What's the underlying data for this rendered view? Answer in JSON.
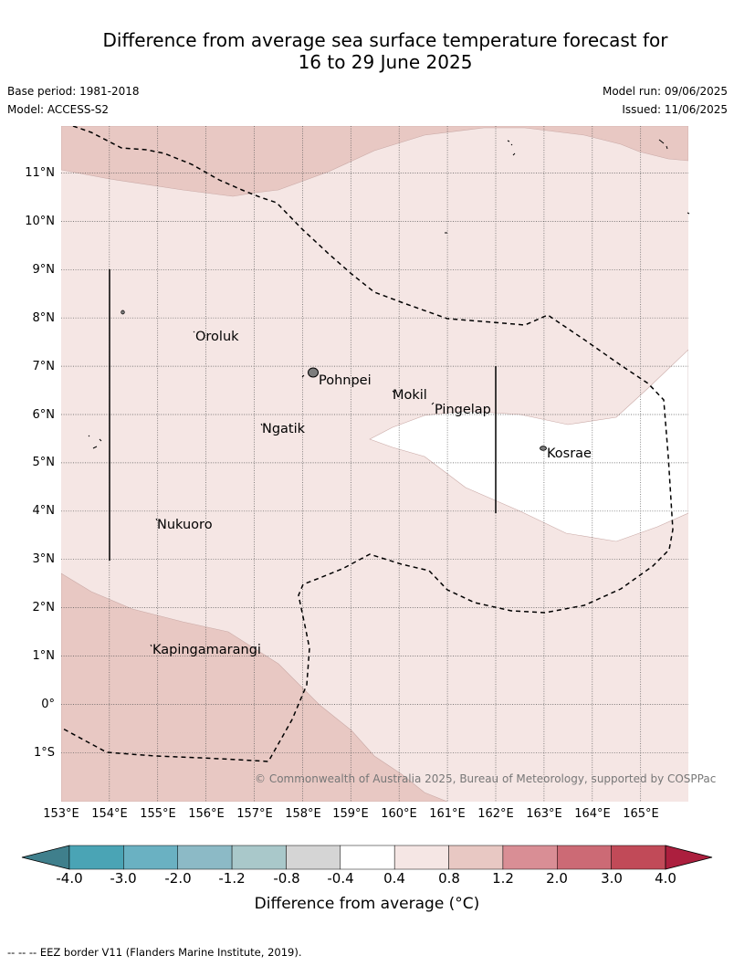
{
  "title_line1": "Difference from average sea surface temperature forecast for",
  "title_line2": "16 to 29 June 2025",
  "base_period": "Base period: 1981-2018",
  "model": "Model: ACCESS-S2",
  "model_run": "Model run: 09/06/2025",
  "issued": "Issued: 11/06/2025",
  "lat_labels": [
    "11°N",
    "10°N",
    "9°N",
    "8°N",
    "7°N",
    "6°N",
    "5°N",
    "4°N",
    "3°N",
    "2°N",
    "1°N",
    "0°",
    "1°S"
  ],
  "lon_labels": [
    "153°E",
    "154°E",
    "155°E",
    "156°E",
    "157°E",
    "158°E",
    "159°E",
    "160°E",
    "161°E",
    "162°E",
    "163°E",
    "164°E",
    "165°E"
  ],
  "places": [
    {
      "name": "Oroluk",
      "lon": 155.8,
      "lat": 7.6
    },
    {
      "name": "Pohnpei",
      "lon": 158.3,
      "lat": 6.9
    },
    {
      "name": "Mokil",
      "lon": 159.8,
      "lat": 6.7
    },
    {
      "name": "Pingelap",
      "lon": 160.7,
      "lat": 6.2
    },
    {
      "name": "Ngatik",
      "lon": 157.3,
      "lat": 5.8
    },
    {
      "name": "Kosrae",
      "lon": 162.98,
      "lat": 5.32
    },
    {
      "name": "Nukuoro",
      "lon": 154.8,
      "lat": 3.85
    },
    {
      "name": "Kapingamarangi",
      "lon": 154.8,
      "lat": 1.1
    }
  ],
  "copyright": "© Commonwealth of Australia 2025, Bureau of Meteorology, supported by COSPPac",
  "colorbar": {
    "ticks": [
      "-4.0",
      "-3.0",
      "-2.0",
      "-1.2",
      "-0.8",
      "-0.4",
      "0.4",
      "0.8",
      "1.2",
      "2.0",
      "3.0",
      "4.0"
    ],
    "colors": [
      "#3f7f8c",
      "#4aa4b5",
      "#6ab1c2",
      "#8cbac6",
      "#a9c8ca",
      "#d5d5d5",
      "#ffffff",
      "#f5e6e4",
      "#e8c8c3",
      "#d98e95",
      "#cc6a75",
      "#c14a58",
      "#ac1f3e"
    ],
    "label": "Difference from average (°C)"
  },
  "legend_note": "-- -- -- EEZ border V11 (Flanders Marine Institute, 2019).",
  "colors": {
    "anomaly_0_4_to_0_8": "#f5e6e4",
    "anomaly_0_8_to_1_2": "#e8c8c3",
    "neutral": "#ffffff"
  }
}
